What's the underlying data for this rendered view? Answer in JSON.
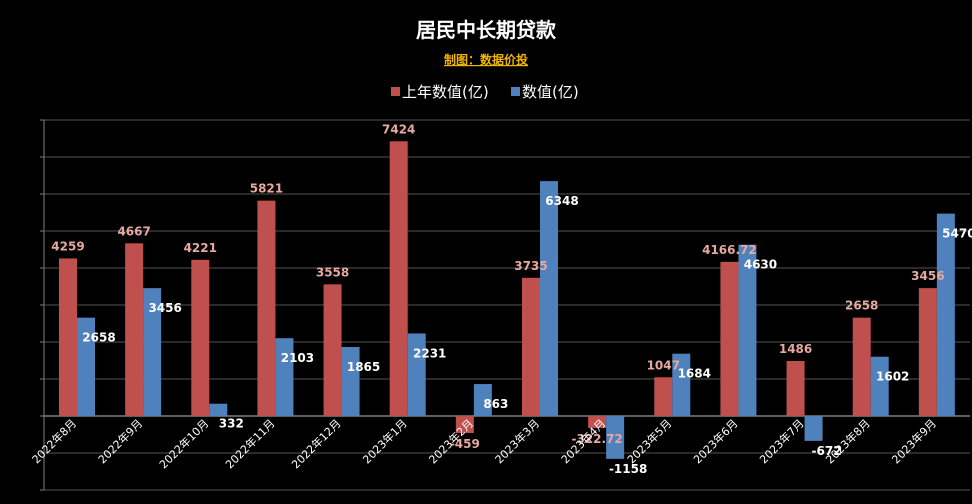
{
  "chart_data": {
    "type": "bar",
    "title": "居民中长期贷款",
    "subtitle": "制图：数据价投",
    "categories": [
      "2022年8月",
      "2022年9月",
      "2022年10月",
      "2022年11月",
      "2022年12月",
      "2023年1月",
      "2023年2月",
      "2023年3月",
      "2023年4月",
      "2023年5月",
      "2023年6月",
      "2023年7月",
      "2023年8月",
      "2023年9月"
    ],
    "series": [
      {
        "name": "上年数值(亿)",
        "color": "#c0504d",
        "labelColor": "#e6a8a0",
        "values": [
          4259,
          4667,
          4221,
          5821,
          3558,
          7424,
          -459,
          3735,
          -322.72,
          1047,
          4166.72,
          1486,
          2658,
          3456
        ],
        "labels": [
          "4259",
          "4667",
          "4221",
          "5821",
          "3558",
          "7424",
          "-459",
          "3735",
          "-322.72",
          "1047",
          "4166.72",
          "1486",
          "2658",
          "3456"
        ]
      },
      {
        "name": "数值(亿)",
        "color": "#4f81bd",
        "labelColor": "#ffffff",
        "values": [
          2658,
          3456,
          332,
          2103,
          1865,
          2231,
          863,
          6348,
          -1158,
          1684,
          4630,
          -672,
          1602,
          5470
        ],
        "labels": [
          "2658",
          "3456",
          "332",
          "2103",
          "1865",
          "2231",
          "863",
          "6348",
          "-1158",
          "1684",
          "4630",
          "-672",
          "1602",
          "5470"
        ]
      }
    ],
    "legend": "top",
    "ylim": [
      -2000,
      8000
    ],
    "gridlines": true
  }
}
